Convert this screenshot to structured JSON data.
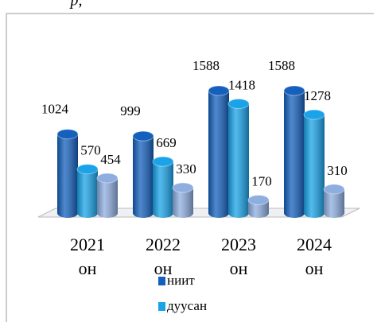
{
  "header_text": "р,",
  "chart_data": {
    "type": "bar3d",
    "categories": [
      "2021 он",
      "2022 он",
      "2023 он",
      "2024 он"
    ],
    "series": [
      {
        "name": "ниит",
        "color": "#1560bd",
        "values": [
          1024,
          999,
          1588,
          1588
        ]
      },
      {
        "name": "дуусан",
        "color": "#1aa3e8",
        "values": [
          570,
          669,
          1418,
          1278
        ]
      },
      {
        "name": null,
        "color": "#8eaee0",
        "values": [
          454,
          330,
          170,
          310
        ]
      }
    ]
  }
}
